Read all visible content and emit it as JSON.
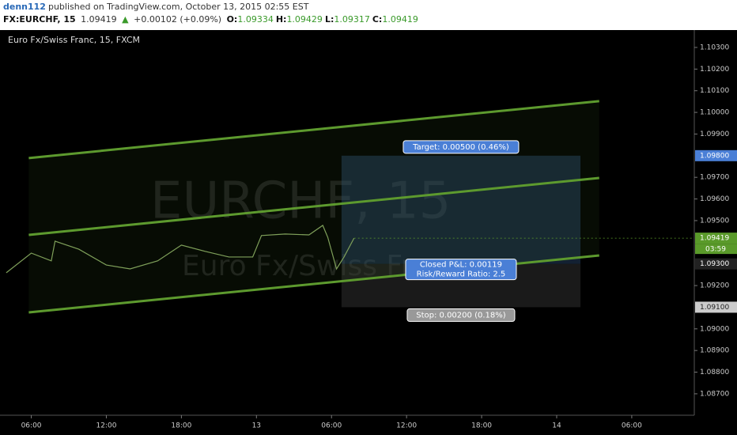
{
  "header": {
    "author": "denn112",
    "published": "published on TradingView.com, October 13, 2015 02:55 EST",
    "symbol": "FX:EURCHF, 15",
    "last": "1.09419",
    "arrow": "▲",
    "change": "+0.00102 (+0.09%)",
    "ohlc": [
      {
        "key": "O:",
        "value": "1.09334"
      },
      {
        "key": "H:",
        "value": "1.09429"
      },
      {
        "key": "L:",
        "value": "1.09317"
      },
      {
        "key": "C:",
        "value": "1.09419"
      }
    ]
  },
  "chart_data": {
    "type": "line",
    "title": "Euro Fx/Swiss Franc, 15, FXCM",
    "watermark": "EURCHF, 15",
    "watermark_sub": "Euro Fx/Swiss Franc",
    "x": [
      4.0,
      6.0,
      7.6,
      7.9,
      9.8,
      12.0,
      13.9,
      16.1,
      18.0,
      19.9,
      21.8,
      23.7,
      24.4,
      26.3,
      28.2,
      29.3,
      29.7,
      30.4,
      31.0,
      31.8
    ],
    "values": [
      1.09259,
      1.0935,
      1.09314,
      1.09405,
      1.09368,
      1.09295,
      1.09277,
      1.09314,
      1.09387,
      1.09358,
      1.09332,
      1.09332,
      1.09431,
      1.09438,
      1.09434,
      1.09478,
      1.09423,
      1.09277,
      1.09332,
      1.09419
    ],
    "color": "#7fa05a",
    "xlim": [
      3.5,
      59
    ],
    "ylim": [
      1.08601,
      1.10373
    ],
    "xticks": [
      {
        "value": 6,
        "label": "06:00"
      },
      {
        "value": 12,
        "label": "12:00"
      },
      {
        "value": 18,
        "label": "18:00"
      },
      {
        "value": 24,
        "label": "13"
      },
      {
        "value": 30,
        "label": "06:00"
      },
      {
        "value": 36,
        "label": "12:00"
      },
      {
        "value": 42,
        "label": "18:00"
      },
      {
        "value": 48,
        "label": "14"
      },
      {
        "value": 54,
        "label": "06:00"
      }
    ],
    "yticks": [
      {
        "value": 1.103,
        "label": "1.10300"
      },
      {
        "value": 1.102,
        "label": "1.10200"
      },
      {
        "value": 1.101,
        "label": "1.10100"
      },
      {
        "value": 1.1,
        "label": "1.10000"
      },
      {
        "value": 1.099,
        "label": "1.09900"
      },
      {
        "value": 1.097,
        "label": "1.09700"
      },
      {
        "value": 1.096,
        "label": "1.09600"
      },
      {
        "value": 1.095,
        "label": "1.09500"
      },
      {
        "value": 1.092,
        "label": "1.09200"
      },
      {
        "value": 1.09,
        "label": "1.09000"
      },
      {
        "value": 1.089,
        "label": "1.08900"
      },
      {
        "value": 1.088,
        "label": "1.08800"
      },
      {
        "value": 1.087,
        "label": "1.08700"
      }
    ],
    "last_price": {
      "value": 1.09419,
      "label": "1.09419"
    },
    "countdown": "03:59",
    "channel": {
      "color": "#5d9a2e",
      "x": [
        5.8,
        51.4
      ],
      "lines": [
        [
          1.09789,
          1.10052
        ],
        [
          1.09434,
          1.09697
        ],
        [
          1.09076,
          1.09339
        ]
      ]
    },
    "position": {
      "x": [
        30.8,
        49.9
      ],
      "target": {
        "value": 1.098,
        "label": "1.09800"
      },
      "entry": {
        "value": 1.093,
        "label": "1.09300"
      },
      "stop": {
        "value": 1.091,
        "label": "1.09100"
      },
      "target_text": "Target: 0.00500 (0.46%)",
      "pl_text": "Closed P&L: 0.00119",
      "rr_text": "Risk/Reward Ratio: 2.5",
      "stop_text": "Stop: 0.00200 (0.18%)"
    }
  }
}
